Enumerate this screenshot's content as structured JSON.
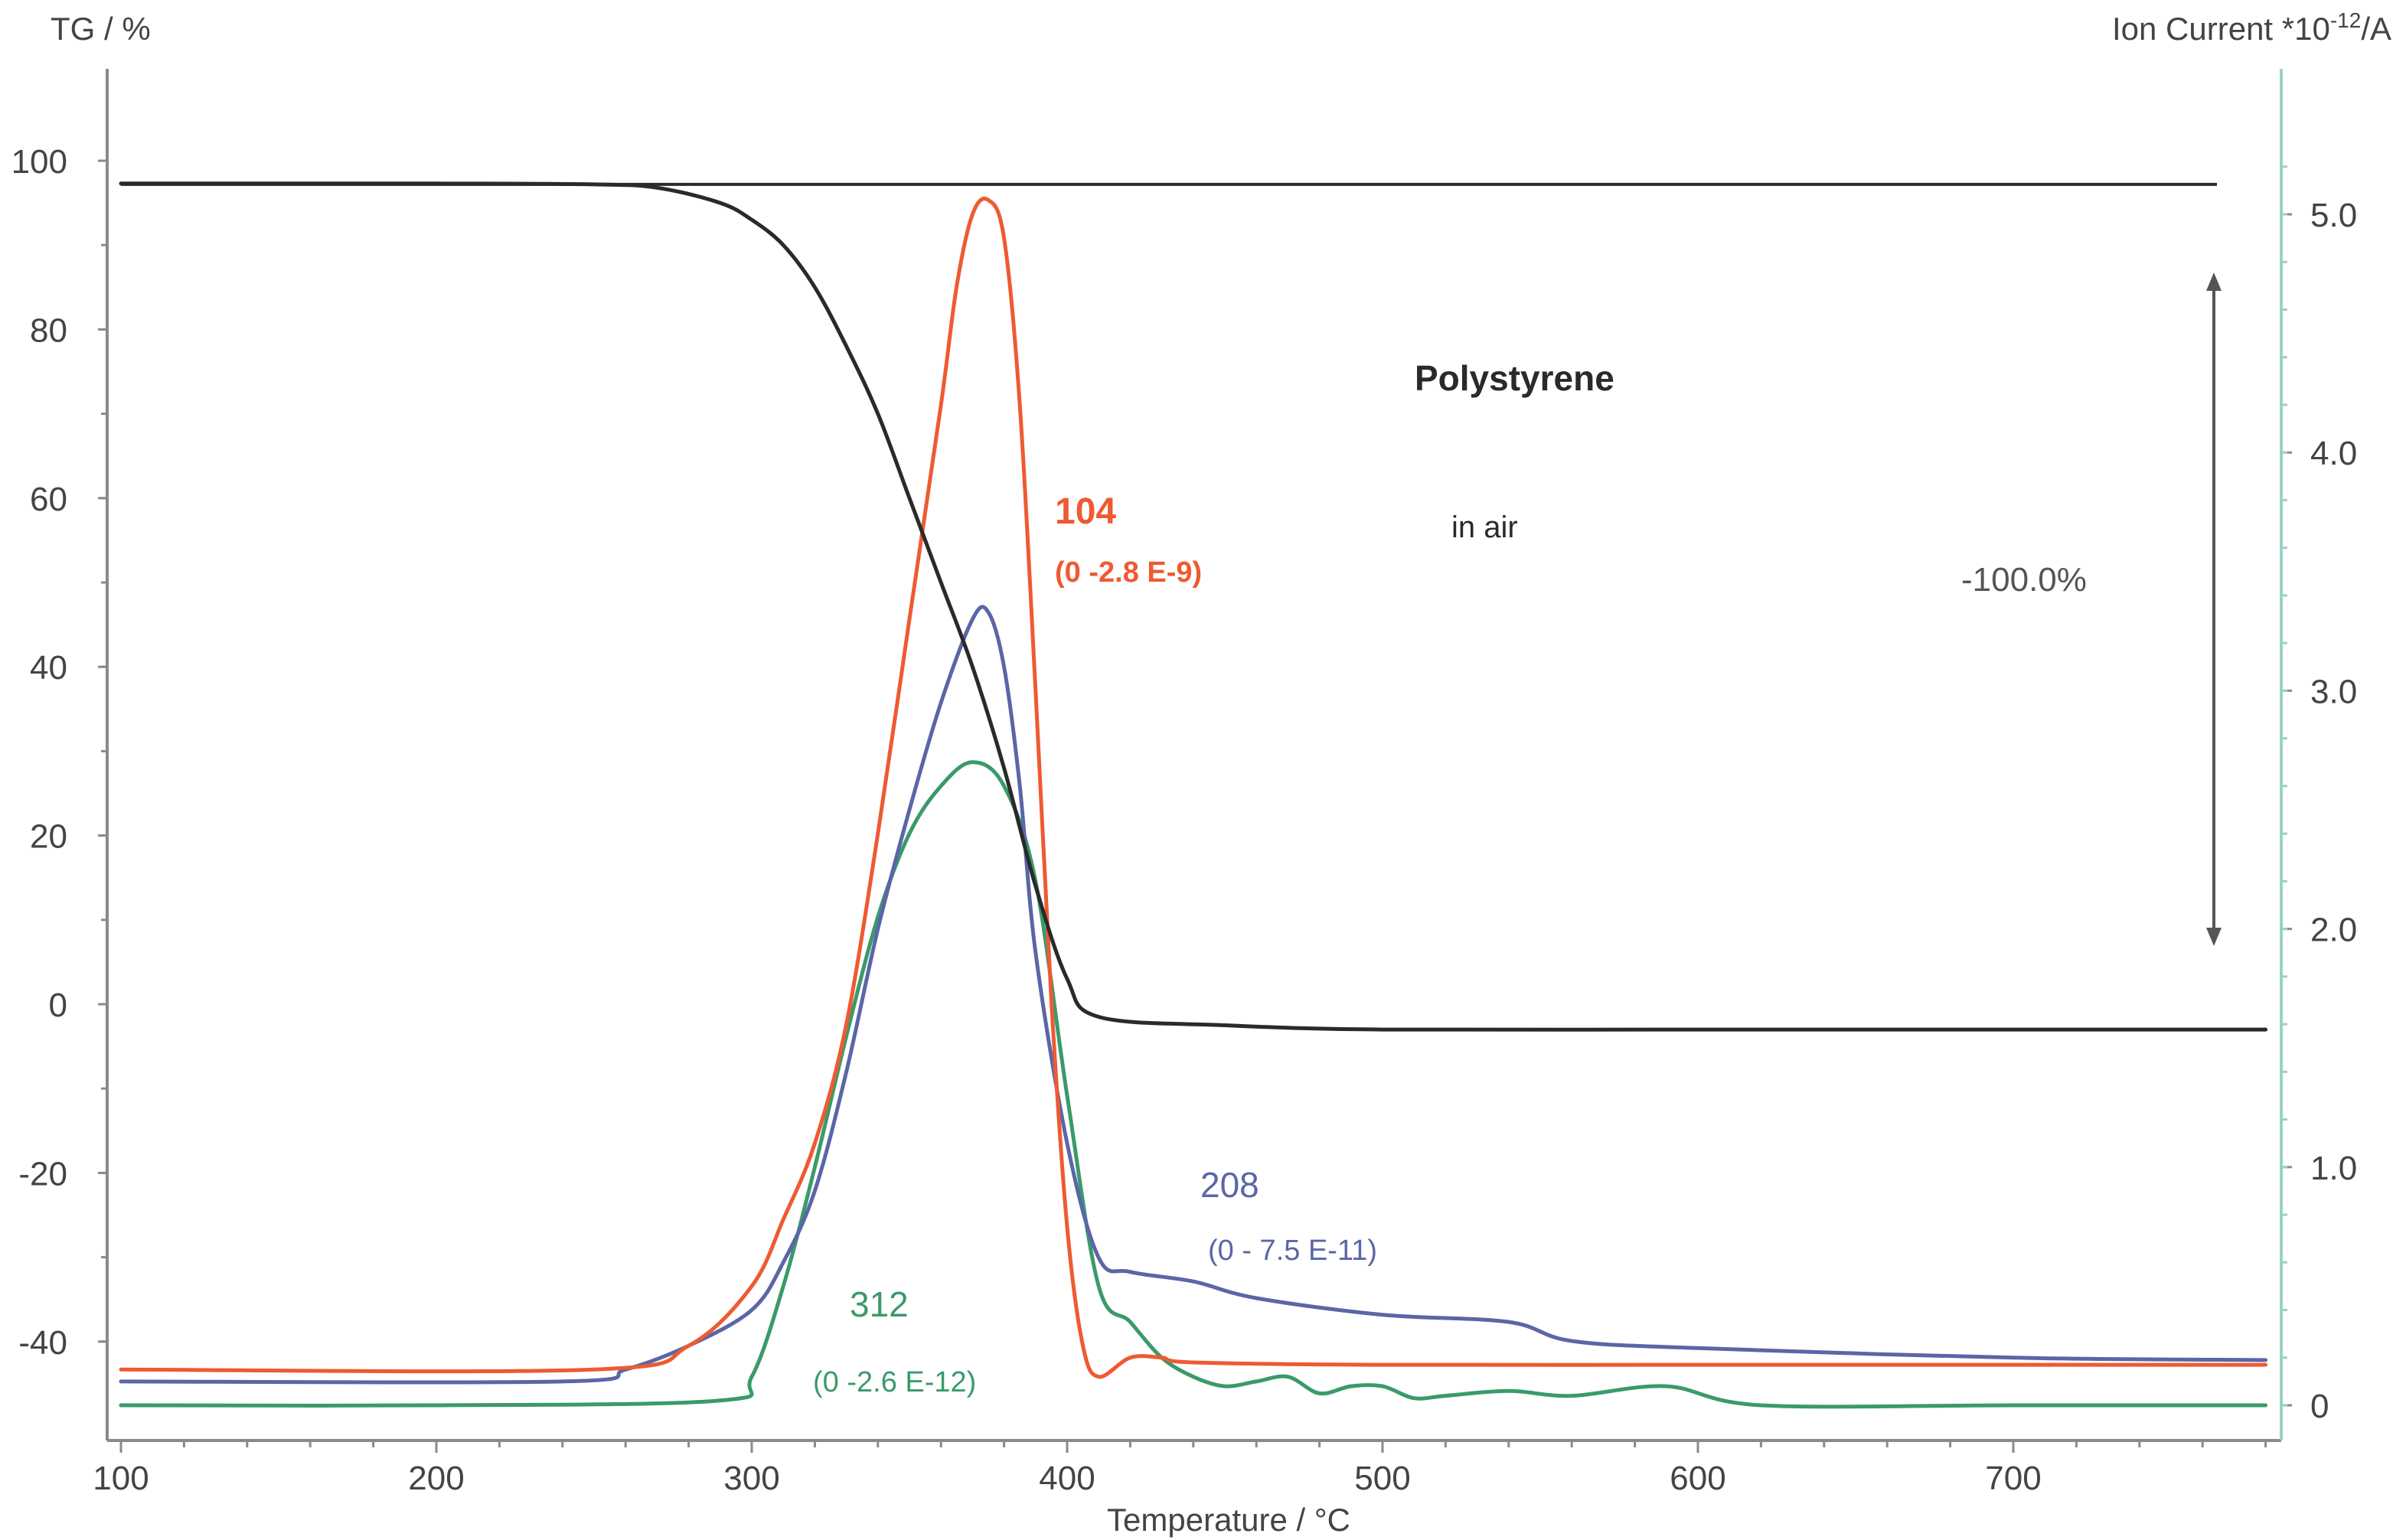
{
  "chart_data": {
    "type": "line",
    "xlabel": "Temperature / °C",
    "ylabel_left": "TG / %",
    "ylabel_right": "Ion Current *10",
    "ylabel_right_exp": "-12",
    "ylabel_right_unit": "/A",
    "xlim": [
      100,
      785
    ],
    "ylim_left": [
      -50,
      110
    ],
    "ylim_right": [
      0,
      5.5
    ],
    "x_ticks": [
      "100",
      "200",
      "300",
      "400",
      "500",
      "600",
      "700"
    ],
    "y_left_ticks": [
      "100",
      "80",
      "60",
      "40",
      "20",
      "0",
      "-20",
      "-40"
    ],
    "y_right_ticks": [
      "5.0",
      "4.0",
      "3.0",
      "2.0",
      "1.0",
      "0"
    ],
    "annotations": {
      "title": "Polystyrene",
      "subtitle": "in air",
      "mass_change": "-100.0%",
      "label_104": "104",
      "range_104": "(0 -2.8 E-9)",
      "label_208": "208",
      "range_208": "(0 - 7.5 E-11)",
      "label_312": "312",
      "range_312": "(0 -2.6 E-12)"
    },
    "reference_line_tg": 97.2,
    "series": [
      {
        "name": "TG",
        "axis": "left",
        "color": "#2a2a2a",
        "x": [
          100,
          200,
          250,
          270,
          290,
          300,
          310,
          320,
          330,
          340,
          350,
          360,
          370,
          380,
          390,
          400,
          410,
          450,
          500,
          600,
          700,
          780
        ],
        "y": [
          97.3,
          97.3,
          97.2,
          96.8,
          95,
          93,
          90,
          85,
          78,
          70,
          60,
          50,
          40,
          28,
          14,
          3,
          -1.5,
          -2.5,
          -3,
          -3,
          -3,
          -3
        ]
      },
      {
        "name": "104",
        "axis": "right",
        "color": "#ee5a32",
        "x": [
          100,
          250,
          280,
          300,
          310,
          320,
          330,
          340,
          350,
          360,
          365,
          370,
          375,
          380,
          385,
          390,
          395,
          400,
          405,
          410,
          420,
          430,
          440,
          500,
          600,
          700,
          780
        ],
        "y": [
          0.15,
          0.15,
          0.25,
          0.5,
          0.78,
          1.1,
          1.6,
          2.4,
          3.3,
          4.2,
          4.7,
          5.0,
          5.06,
          4.9,
          4.2,
          3.0,
          1.7,
          0.75,
          0.25,
          0.12,
          0.2,
          0.2,
          0.18,
          0.17,
          0.17,
          0.17,
          0.17
        ]
      },
      {
        "name": "208",
        "axis": "right",
        "color": "#5a66a6",
        "x": [
          100,
          240,
          260,
          280,
          300,
          310,
          320,
          330,
          340,
          350,
          360,
          370,
          375,
          380,
          385,
          390,
          400,
          410,
          420,
          440,
          460,
          500,
          540,
          560,
          600,
          700,
          780
        ],
        "y": [
          0.1,
          0.1,
          0.15,
          0.25,
          0.4,
          0.6,
          0.9,
          1.4,
          2.0,
          2.5,
          2.95,
          3.3,
          3.33,
          3.1,
          2.6,
          1.9,
          1.1,
          0.62,
          0.56,
          0.52,
          0.45,
          0.38,
          0.35,
          0.27,
          0.24,
          0.2,
          0.19
        ]
      },
      {
        "name": "312",
        "axis": "right",
        "color": "#3a9a6a",
        "x": [
          100,
          200,
          290,
          300,
          310,
          320,
          330,
          340,
          350,
          360,
          370,
          380,
          390,
          400,
          410,
          420,
          430,
          440,
          450,
          460,
          470,
          480,
          490,
          500,
          510,
          520,
          540,
          560,
          590,
          620,
          700,
          780
        ],
        "y": [
          0.0,
          0.0,
          0.02,
          0.12,
          0.5,
          1.0,
          1.55,
          2.05,
          2.4,
          2.6,
          2.7,
          2.6,
          2.2,
          1.3,
          0.5,
          0.35,
          0.2,
          0.12,
          0.08,
          0.1,
          0.12,
          0.05,
          0.08,
          0.08,
          0.03,
          0.04,
          0.06,
          0.04,
          0.08,
          0.0,
          0.0,
          0.0
        ]
      }
    ]
  }
}
